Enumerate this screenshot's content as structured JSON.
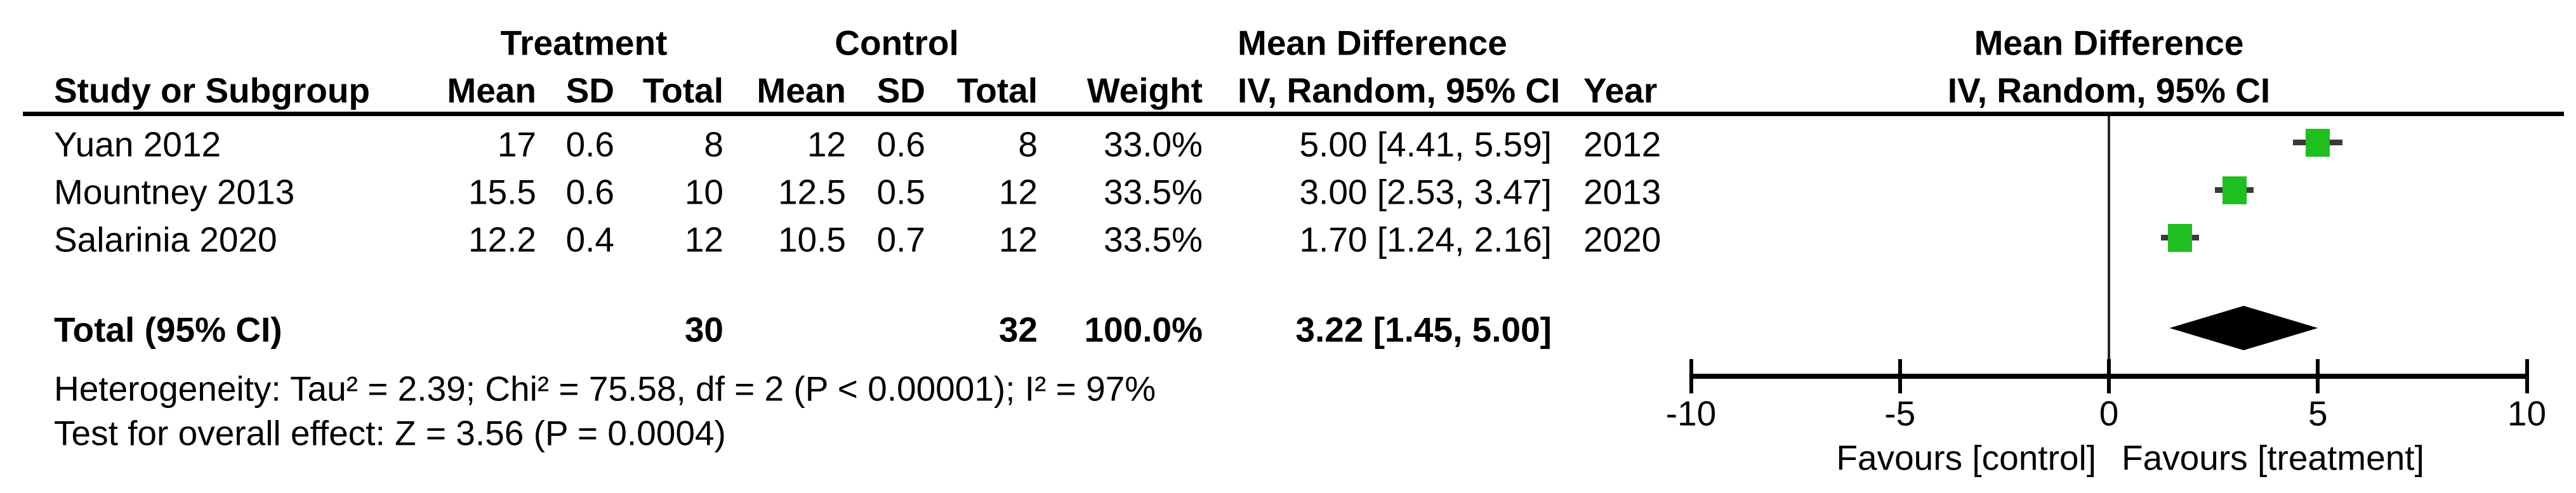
{
  "table": {
    "group_headers": {
      "treatment": "Treatment",
      "control": "Control",
      "mean_difference": "Mean Difference"
    },
    "column_headers": {
      "study": "Study or Subgroup",
      "t_mean": "Mean",
      "t_sd": "SD",
      "t_total": "Total",
      "c_mean": "Mean",
      "c_sd": "SD",
      "c_total": "Total",
      "weight": "Weight",
      "iv_ci": "IV, Random, 95% CI",
      "year": "Year"
    },
    "rows": [
      {
        "study": "Yuan 2012",
        "t_mean": "17",
        "t_sd": "0.6",
        "t_total": "8",
        "c_mean": "12",
        "c_sd": "0.6",
        "c_total": "8",
        "weight": "33.0%",
        "md_ci": "5.00 [4.41, 5.59]",
        "year": "2012"
      },
      {
        "study": "Mountney 2013",
        "t_mean": "15.5",
        "t_sd": "0.6",
        "t_total": "10",
        "c_mean": "12.5",
        "c_sd": "0.5",
        "c_total": "12",
        "weight": "33.5%",
        "md_ci": "3.00 [2.53, 3.47]",
        "year": "2013"
      },
      {
        "study": "Salarinia 2020",
        "t_mean": "12.2",
        "t_sd": "0.4",
        "t_total": "12",
        "c_mean": "10.5",
        "c_sd": "0.7",
        "c_total": "12",
        "weight": "33.5%",
        "md_ci": "1.70 [1.24, 2.16]",
        "year": "2020"
      }
    ],
    "total_row": {
      "label": "Total (95% CI)",
      "t_total": "30",
      "c_total": "32",
      "weight": "100.0%",
      "md_ci": "3.22 [1.45, 5.00]"
    },
    "heterogeneity": "Heterogeneity: Tau² = 2.39; Chi² = 75.58, df = 2 (P < 0.00001); I² = 97%",
    "overall_effect": "Test for overall effect: Z = 3.56 (P = 0.0004)"
  },
  "plot": {
    "header_line1": "Mean Difference",
    "header_line2": "IV, Random, 95% CI",
    "marker_color": "#1fbf1f",
    "ci_line_color": "#3a3a3a",
    "diamond_color": "#000000",
    "axis_color": "#000000"
  },
  "chart_data": {
    "type": "forest",
    "effect_measure": "Mean Difference, IV, Random, 95% CI",
    "xlim": [
      -10,
      10
    ],
    "x_ticks": [
      -10,
      -5,
      0,
      5,
      10
    ],
    "x_tick_labels": [
      "-10",
      "-5",
      "0",
      "5",
      "10"
    ],
    "axis_labels": {
      "left": "Favours [control]",
      "right": "Favours [treatment]"
    },
    "studies": [
      {
        "name": "Yuan 2012",
        "year": 2012,
        "treatment": {
          "mean": 17,
          "sd": 0.6,
          "n": 8
        },
        "control": {
          "mean": 12,
          "sd": 0.6,
          "n": 8
        },
        "weight_pct": 33.0,
        "md": 5.0,
        "ci_low": 4.41,
        "ci_high": 5.59
      },
      {
        "name": "Mountney 2013",
        "year": 2013,
        "treatment": {
          "mean": 15.5,
          "sd": 0.6,
          "n": 10
        },
        "control": {
          "mean": 12.5,
          "sd": 0.5,
          "n": 12
        },
        "weight_pct": 33.5,
        "md": 3.0,
        "ci_low": 2.53,
        "ci_high": 3.47
      },
      {
        "name": "Salarinia 2020",
        "year": 2020,
        "treatment": {
          "mean": 12.2,
          "sd": 0.4,
          "n": 12
        },
        "control": {
          "mean": 10.5,
          "sd": 0.7,
          "n": 12
        },
        "weight_pct": 33.5,
        "md": 1.7,
        "ci_low": 1.24,
        "ci_high": 2.16
      }
    ],
    "total": {
      "label": "Total (95% CI)",
      "n_treatment": 30,
      "n_control": 32,
      "weight_pct": 100.0,
      "md": 3.22,
      "ci_low": 1.45,
      "ci_high": 5.0
    },
    "heterogeneity": {
      "tau2": 2.39,
      "chi2": 75.58,
      "df": 2,
      "p": "< 0.00001",
      "i2_pct": 97
    },
    "overall_effect": {
      "z": 3.56,
      "p": "= 0.0004"
    }
  }
}
